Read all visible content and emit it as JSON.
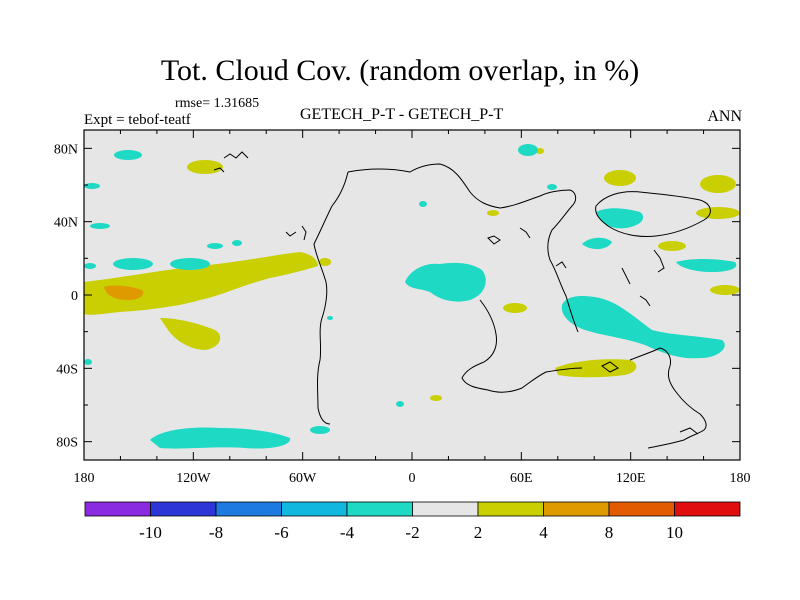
{
  "title": "Tot. Cloud Cov. (random overlap, in %)",
  "rmse": "rmse= 1.31685",
  "expt": "Expt = tebof-teatf",
  "subtitle": "GETECH_P-T - GETECH_P-T",
  "period": "ANN",
  "lon_ticks": [
    "180",
    "120W",
    "60W",
    "0",
    "60E",
    "120E",
    "180"
  ],
  "lat_ticks": [
    "80N",
    "40N",
    "0",
    "40S",
    "80S"
  ],
  "colorbar": {
    "labels": [
      "-10",
      "-8",
      "-6",
      "-4",
      "-2",
      "2",
      "4",
      "8",
      "10"
    ],
    "colors": [
      "#8a2be2",
      "#2e35d6",
      "#1c7ae0",
      "#12b7e0",
      "#1ed9c4",
      "#e6e6e6",
      "#c9cf00",
      "#df9a00",
      "#e35b00",
      "#e00e0e"
    ]
  },
  "map_colors": {
    "background": "#e6e6e6",
    "negative_2_4": "#1ed9c4",
    "positive_2_4": "#c9cf00",
    "positive_4_8": "#df9a00"
  }
}
